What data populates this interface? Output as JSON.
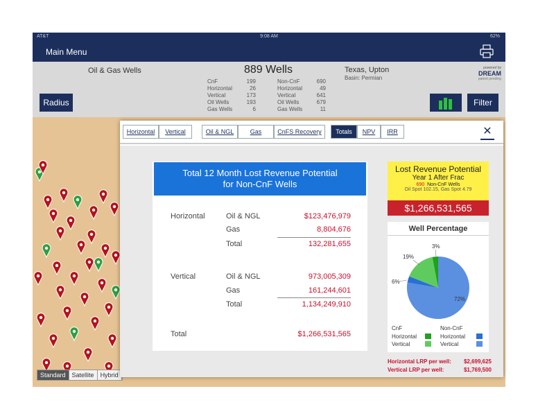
{
  "status": {
    "carrier": "AT&T",
    "time": "9:08 AM",
    "battery": "62%"
  },
  "nav": {
    "menu": "Main Menu"
  },
  "header": {
    "title": "Oil & Gas Wells",
    "well_count": "889 Wells",
    "stats_left": [
      [
        "CnF",
        "199"
      ],
      [
        "Horizontal",
        "26"
      ],
      [
        "Vertical",
        "173"
      ],
      [
        "Oil Wells",
        "193"
      ],
      [
        "Gas Wells",
        "6"
      ]
    ],
    "stats_right": [
      [
        "Non-CnF",
        "690"
      ],
      [
        "Horizontal",
        "49"
      ],
      [
        "Vertical",
        "641"
      ],
      [
        "Oil Wells",
        "679"
      ],
      [
        "Gas Wells",
        "11"
      ]
    ],
    "region": "Texas, Upton",
    "basin": "Basin: Permian",
    "brand_powered": "powered by",
    "brand_name": "DREAM",
    "brand_patent": "patent pending",
    "radius": "Radius",
    "filter": "Filter"
  },
  "map_types": [
    "Standard",
    "Satellite",
    "Hybrid"
  ],
  "tabs": [
    "Horizontal",
    "Vertical",
    "Oil & NGL",
    "Gas",
    "CnFS Recovery",
    "Totals",
    "NPV",
    "IRR"
  ],
  "selected_tab": "Totals",
  "close": "✕",
  "card": {
    "title_line1": "Total 12 Month Lost Revenue Potential",
    "title_line2": "for Non-CnF Wells",
    "horizontal_label": "Horizontal",
    "vertical_label": "Vertical",
    "total_label": "Total",
    "oil_label": "Oil & NGL",
    "gas_label": "Gas",
    "subtotal_label": "Total",
    "h_oil": "$123,476,979",
    "h_gas": "8,804,676",
    "h_total": "132,281,655",
    "v_oil": "973,005,309",
    "v_gas": "161,244,601",
    "v_total": "1,134,249,910",
    "grand_total": "$1,266,531,565"
  },
  "lrp": {
    "title": "Lost Revenue Potential",
    "subtitle": "Year 1 After Frac",
    "count": "690",
    "count_label": "Non-CnF Wells",
    "spot": "Oil Spot 102.15,  Gas Spot 4.79",
    "total": "$1,266,531,565"
  },
  "pie": {
    "title": "Well Percentage",
    "labels": [
      "72%",
      "19%",
      "6%",
      "3%"
    ],
    "legend_cnf": "CnF",
    "legend_noncnf": "Non-CnF",
    "legend_horizontal": "Horizontal",
    "legend_vertical": "Vertical",
    "colors": {
      "noncnf_vertical": "#5b8fe0",
      "cnf_vertical": "#5fcb5f",
      "noncnf_horizontal": "#2a6fd6",
      "cnf_horizontal": "#1fa01f"
    }
  },
  "per_well": {
    "horizontal_label": "Horizontal LRP per well:",
    "horizontal_value": "$2,699,625",
    "vertical_label": "Vertical LRP per well:",
    "vertical_value": "$1,769,500"
  }
}
